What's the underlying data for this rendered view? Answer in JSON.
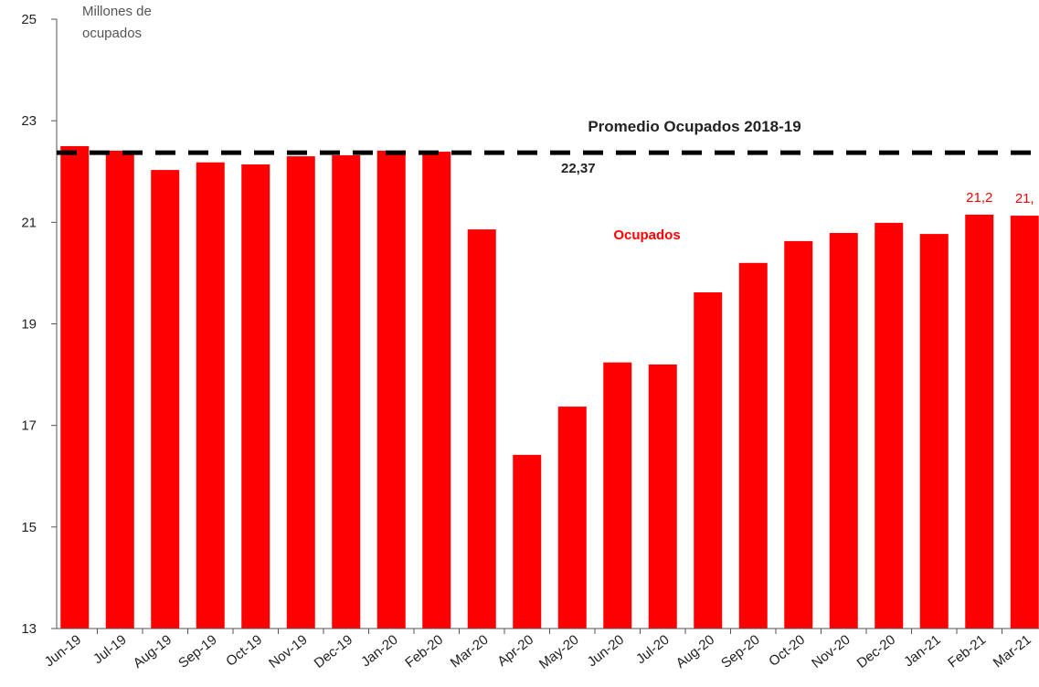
{
  "chart_data": {
    "type": "bar",
    "y_axis_label": [
      "Millones de",
      "ocupados"
    ],
    "categories": [
      "Jun-19",
      "Jul-19",
      "Aug-19",
      "Sep-19",
      "Oct-19",
      "Nov-19",
      "Dec-19",
      "Jan-20",
      "Feb-20",
      "Mar-20",
      "Apr-20",
      "May-20",
      "Jun-20",
      "Jul-20",
      "Aug-20",
      "Sep-20",
      "Oct-20",
      "Nov-20",
      "Dec-20",
      "Jan-21",
      "Feb-21",
      "Mar-21"
    ],
    "series": [
      {
        "name": "Ocupados",
        "color": "#ff0000",
        "values": [
          22.5,
          22.41,
          22.03,
          22.18,
          22.14,
          22.3,
          22.32,
          22.41,
          22.39,
          20.86,
          16.42,
          17.37,
          18.24,
          18.2,
          19.62,
          20.2,
          20.63,
          20.79,
          20.99,
          20.77,
          21.15,
          21.13
        ],
        "value_labels": [
          null,
          null,
          null,
          null,
          null,
          null,
          null,
          null,
          null,
          null,
          null,
          null,
          null,
          null,
          null,
          null,
          null,
          null,
          null,
          null,
          "21,2",
          "21,"
        ]
      }
    ],
    "reference_line": {
      "label": "Promedio Ocupados 2018-19",
      "value": 22.37,
      "value_label": "22,37",
      "color": "#000000"
    },
    "ylim": [
      13,
      25
    ],
    "yticks": [
      13,
      15,
      17,
      19,
      21,
      23,
      25
    ]
  }
}
